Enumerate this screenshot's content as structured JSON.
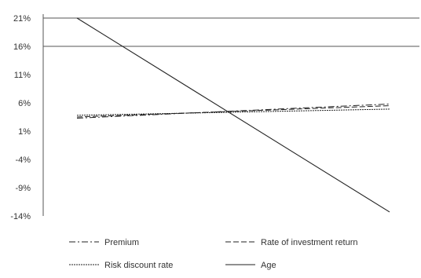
{
  "chart_data": {
    "type": "line",
    "title": "",
    "xlabel": "",
    "ylabel": "",
    "yticks": [
      "21%",
      "16%",
      "11%",
      "6%",
      "1%",
      "-4%",
      "-9%",
      "-14%"
    ],
    "ylim": [
      -14,
      21
    ],
    "x": [
      0,
      1
    ],
    "series": [
      {
        "name": "Premium",
        "values": [
          3.3,
          5.8
        ],
        "style": "dash-dot"
      },
      {
        "name": "Rate of investment return",
        "values": [
          3.5,
          5.5
        ],
        "style": "dashed"
      },
      {
        "name": "Risk discount rate",
        "values": [
          3.8,
          4.9
        ],
        "style": "dotted"
      },
      {
        "name": "Age",
        "values": [
          21.0,
          -13.3
        ],
        "style": "solid"
      }
    ],
    "grid": "horizontal at 21% and 16%",
    "legend": "bottom"
  }
}
